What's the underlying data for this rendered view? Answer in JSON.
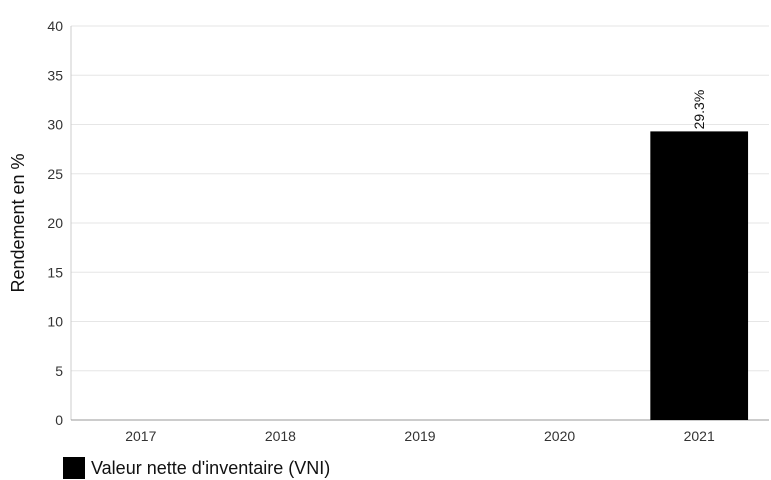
{
  "chart_data": {
    "type": "bar",
    "categories": [
      "2017",
      "2018",
      "2019",
      "2020",
      "2021"
    ],
    "series": [
      {
        "name": "Valeur nette d'inventaire (VNI)",
        "values": [
          null,
          null,
          null,
          null,
          29.3
        ],
        "data_labels": [
          "",
          "",
          "",
          "",
          "29.3%"
        ],
        "color": "#000000"
      }
    ],
    "ylabel": "Rendement en %",
    "ylim": [
      0,
      40
    ],
    "yticks": [
      "0",
      "5",
      "10",
      "15",
      "20",
      "25",
      "30",
      "35",
      "40"
    ],
    "grid": true,
    "legend_position": "bottom-left"
  }
}
